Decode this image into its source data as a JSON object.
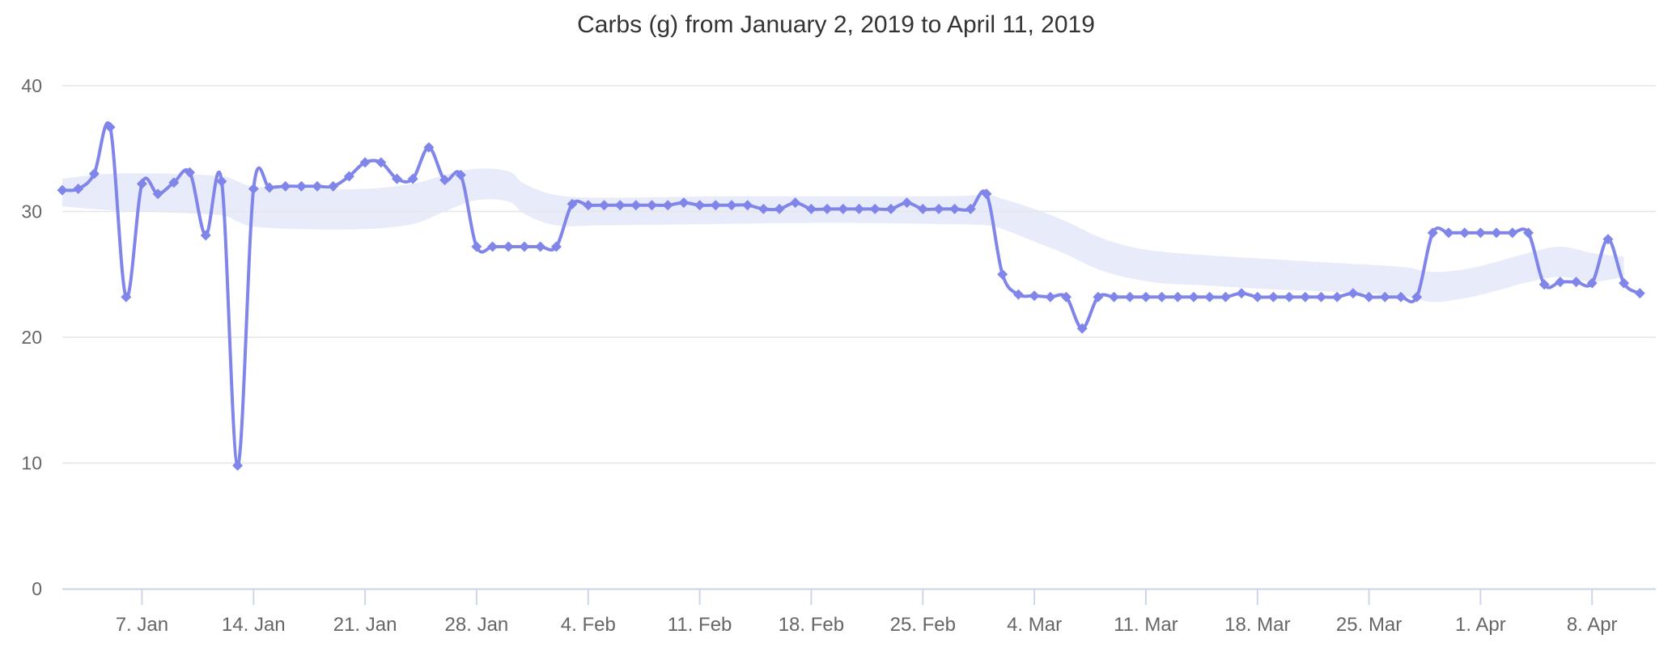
{
  "chart_data": {
    "type": "line",
    "title": "Carbs (g) from January 2, 2019 to April 11, 2019",
    "xlabel": "",
    "ylabel": "",
    "x_type": "date",
    "start_date": "2019-01-02",
    "end_date": "2019-04-11",
    "point_interval": "1 day",
    "ylim": [
      0,
      40
    ],
    "grid": true,
    "legend": false,
    "y_ticks": [
      {
        "value": 0,
        "label": "0"
      },
      {
        "value": 10,
        "label": "10"
      },
      {
        "value": 20,
        "label": "20"
      },
      {
        "value": 30,
        "label": "30"
      },
      {
        "value": 40,
        "label": "40"
      }
    ],
    "x_ticks": [
      {
        "day": 5,
        "label": "7. Jan"
      },
      {
        "day": 12,
        "label": "14. Jan"
      },
      {
        "day": 19,
        "label": "21. Jan"
      },
      {
        "day": 26,
        "label": "28. Jan"
      },
      {
        "day": 33,
        "label": "4. Feb"
      },
      {
        "day": 40,
        "label": "11. Feb"
      },
      {
        "day": 47,
        "label": "18. Feb"
      },
      {
        "day": 54,
        "label": "25. Feb"
      },
      {
        "day": 61,
        "label": "4. Mar"
      },
      {
        "day": 68,
        "label": "11. Mar"
      },
      {
        "day": 75,
        "label": "18. Mar"
      },
      {
        "day": 82,
        "label": "25. Mar"
      },
      {
        "day": 89,
        "label": "1. Apr"
      },
      {
        "day": 96,
        "label": "8. Apr"
      }
    ],
    "series": [
      {
        "name": "Carbs (g)",
        "type": "spline",
        "marker": "diamond",
        "color": "#8085e9",
        "values": [
          31.7,
          31.8,
          33.0,
          36.7,
          23.2,
          32.2,
          31.4,
          32.3,
          33.1,
          28.1,
          32.4,
          9.8,
          31.8,
          31.9,
          32.0,
          32.0,
          32.0,
          32.0,
          32.8,
          33.9,
          33.9,
          32.6,
          32.6,
          35.1,
          32.5,
          32.9,
          27.2,
          27.2,
          27.2,
          27.2,
          27.2,
          27.2,
          30.6,
          30.5,
          30.5,
          30.5,
          30.5,
          30.5,
          30.5,
          30.7,
          30.5,
          30.5,
          30.5,
          30.5,
          30.2,
          30.2,
          30.7,
          30.2,
          30.2,
          30.2,
          30.2,
          30.2,
          30.2,
          30.7,
          30.2,
          30.2,
          30.2,
          30.2,
          31.4,
          25.0,
          23.4,
          23.3,
          23.2,
          23.2,
          20.7,
          23.2,
          23.2,
          23.2,
          23.2,
          23.2,
          23.2,
          23.2,
          23.2,
          23.2,
          23.5,
          23.2,
          23.2,
          23.2,
          23.2,
          23.2,
          23.2,
          23.5,
          23.2,
          23.2,
          23.2,
          23.2,
          28.3,
          28.3,
          28.3,
          28.3,
          28.3,
          28.3,
          28.3,
          24.2,
          24.4,
          24.4,
          24.3,
          27.8,
          24.3,
          23.5
        ]
      },
      {
        "name": "Range band",
        "type": "arearange",
        "color": "#e8ecfa",
        "keyframes": [
          {
            "day": 0,
            "low": 30.4,
            "high": 32.6
          },
          {
            "day": 3,
            "low": 30.1,
            "high": 33.0
          },
          {
            "day": 7,
            "low": 29.9,
            "high": 33.0
          },
          {
            "day": 10,
            "low": 29.7,
            "high": 32.8
          },
          {
            "day": 11,
            "low": 29.2,
            "high": 32.4
          },
          {
            "day": 12,
            "low": 28.8,
            "high": 32.0
          },
          {
            "day": 15,
            "low": 28.6,
            "high": 31.8
          },
          {
            "day": 19,
            "low": 28.6,
            "high": 31.8
          },
          {
            "day": 22,
            "low": 29.0,
            "high": 32.2
          },
          {
            "day": 24,
            "low": 30.0,
            "high": 32.9
          },
          {
            "day": 26,
            "low": 30.9,
            "high": 33.4
          },
          {
            "day": 28,
            "low": 30.8,
            "high": 33.2
          },
          {
            "day": 29,
            "low": 29.8,
            "high": 32.2
          },
          {
            "day": 31,
            "low": 28.9,
            "high": 31.3
          },
          {
            "day": 34,
            "low": 28.9,
            "high": 31.1
          },
          {
            "day": 41,
            "low": 29.0,
            "high": 31.2
          },
          {
            "day": 48,
            "low": 29.1,
            "high": 31.2
          },
          {
            "day": 55,
            "low": 29.0,
            "high": 31.2
          },
          {
            "day": 58,
            "low": 28.9,
            "high": 31.3
          },
          {
            "day": 59,
            "low": 28.6,
            "high": 31.0
          },
          {
            "day": 61,
            "low": 27.6,
            "high": 30.2
          },
          {
            "day": 63,
            "low": 26.6,
            "high": 29.2
          },
          {
            "day": 65,
            "low": 25.4,
            "high": 28.0
          },
          {
            "day": 67,
            "low": 24.7,
            "high": 27.2
          },
          {
            "day": 69,
            "low": 24.3,
            "high": 26.8
          },
          {
            "day": 72,
            "low": 24.1,
            "high": 26.5
          },
          {
            "day": 76,
            "low": 23.8,
            "high": 26.2
          },
          {
            "day": 80,
            "low": 23.6,
            "high": 25.9
          },
          {
            "day": 84,
            "low": 23.3,
            "high": 25.6
          },
          {
            "day": 86,
            "low": 22.8,
            "high": 25.2
          },
          {
            "day": 88,
            "low": 23.1,
            "high": 25.4
          },
          {
            "day": 90,
            "low": 23.7,
            "high": 26.0
          },
          {
            "day": 92,
            "low": 24.4,
            "high": 26.7
          },
          {
            "day": 94,
            "low": 24.8,
            "high": 27.2
          },
          {
            "day": 96,
            "low": 24.4,
            "high": 26.7
          },
          {
            "day": 98,
            "low": 24.8,
            "high": 26.4
          }
        ]
      }
    ],
    "colors": {
      "line": "#8085e9",
      "marker": "#8085e9",
      "band": "#e8ecfa",
      "grid": "#e6e6e6",
      "axis_line": "#ccd6eb",
      "tick_mark": "#ccd6eb",
      "axis_label": "#666666",
      "title": "#333333",
      "background": "#ffffff"
    }
  }
}
